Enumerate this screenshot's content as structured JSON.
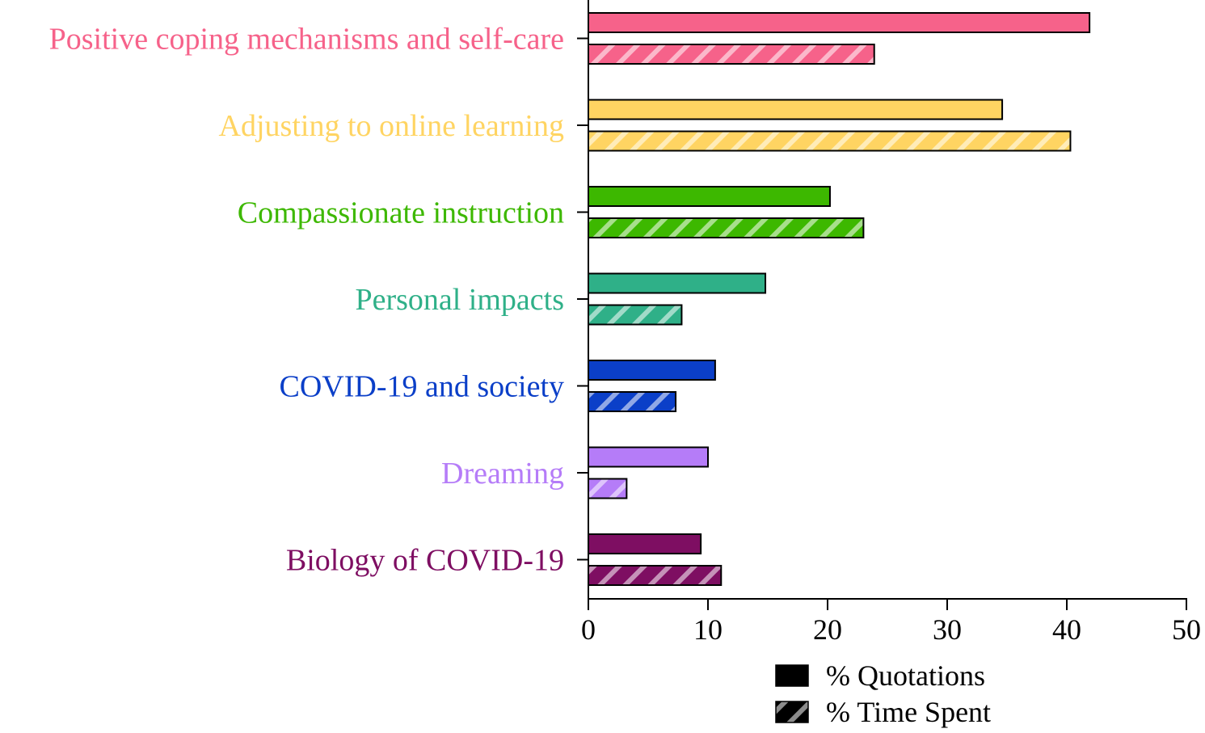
{
  "chart_data": {
    "type": "bar",
    "orientation": "horizontal",
    "categories": [
      "Positive coping mechanisms and self-care",
      "Adjusting to online learning",
      "Compassionate instruction",
      "Personal impacts",
      "COVID-19 and society",
      "Dreaming",
      "Biology of COVID-19"
    ],
    "category_colors": [
      "#F6628A",
      "#FFD462",
      "#3DB800",
      "#2FB088",
      "#0B3FC8",
      "#B57CF8",
      "#7E0E62"
    ],
    "series": [
      {
        "name": "% Quotations",
        "pattern": "solid",
        "values": [
          41.9,
          34.6,
          20.2,
          14.8,
          10.6,
          10.0,
          9.4
        ]
      },
      {
        "name": "% Time Spent",
        "pattern": "hatched",
        "values": [
          23.9,
          40.3,
          23.0,
          7.8,
          7.3,
          3.2,
          11.1
        ]
      }
    ],
    "xlim": [
      0,
      50
    ],
    "xticks": [
      "0",
      "10",
      "20",
      "30",
      "40",
      "50"
    ],
    "xlabel": "",
    "ylabel": "",
    "title": "",
    "grid": false,
    "legend_position": "bottom-right",
    "legend_swatch_color": "#000000"
  }
}
